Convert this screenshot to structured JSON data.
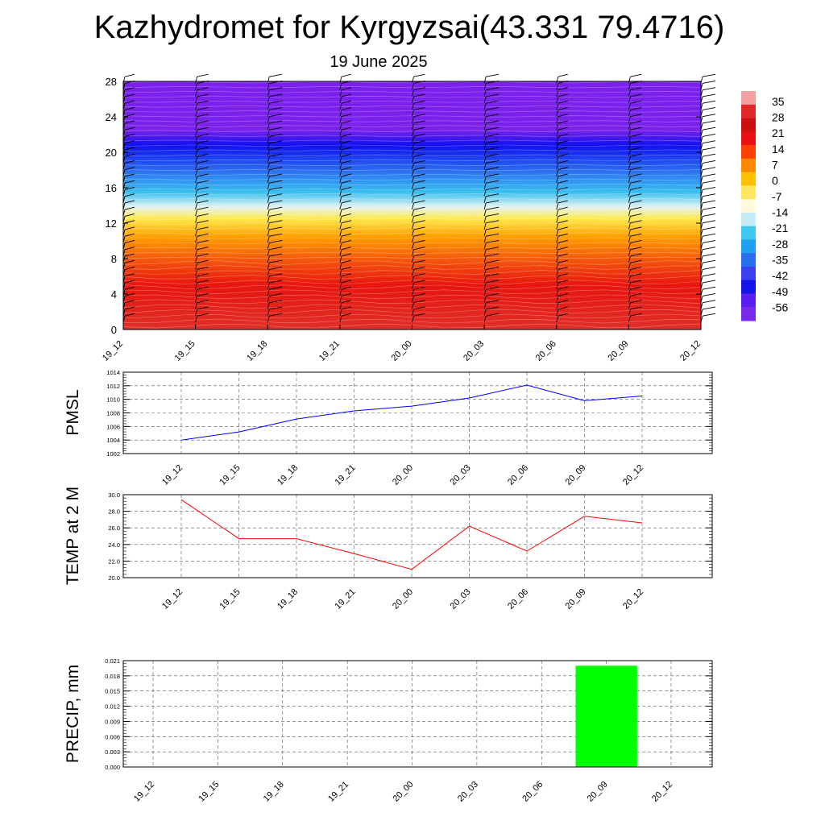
{
  "title": "Kazhydromet for Kyrgyzsai(43.331 79.4716)",
  "subtitle": "19 June 2025",
  "chart_data": [
    {
      "type": "heatmap",
      "x_categories": [
        "19_12",
        "19_15",
        "19_18",
        "19_21",
        "20_00",
        "20_03",
        "20_06",
        "20_09",
        "20_12"
      ],
      "y_ticks": [
        0,
        4,
        8,
        12,
        16,
        20,
        24,
        28
      ],
      "ylim": [
        0,
        28
      ],
      "colorbar_labels": [
        "35",
        "28",
        "21",
        "14",
        "7",
        "0",
        "-7",
        "-14",
        "-21",
        "-28",
        "-35",
        "-42",
        "-49",
        "-56"
      ],
      "color_stops": [
        {
          "level": 0,
          "color": "#e03028"
        },
        {
          "level": 5,
          "color": "#e8150f"
        },
        {
          "level": 8,
          "color": "#f55a0c"
        },
        {
          "level": 10.5,
          "color": "#ffa000"
        },
        {
          "level": 12.5,
          "color": "#ffe84a"
        },
        {
          "level": 13.8,
          "color": "#e6f4f0"
        },
        {
          "level": 15.5,
          "color": "#38c0f0"
        },
        {
          "level": 18,
          "color": "#2a6cf0"
        },
        {
          "level": 20.8,
          "color": "#1010f0"
        },
        {
          "level": 22.5,
          "color": "#7a22ea"
        },
        {
          "level": 28,
          "color": "#7b20ee"
        }
      ],
      "colorbar_colors": [
        "#f5a0a0",
        "#e02a2a",
        "#cc1010",
        "#e81010",
        "#ff4000",
        "#ff8a00",
        "#ffc000",
        "#ffe860",
        "#fffadc",
        "#c8ecf5",
        "#40c8f0",
        "#1fa0f0",
        "#2870f0",
        "#3a40f0",
        "#1414e8",
        "#5a1ef0",
        "#7a2ae8"
      ]
    },
    {
      "type": "line",
      "ylabel": "PMSL",
      "categories": [
        "19_12",
        "19_15",
        "19_18",
        "19_21",
        "20_00",
        "20_03",
        "20_06",
        "20_09",
        "20_12"
      ],
      "values": [
        1004,
        1005.2,
        1007.1,
        1008.3,
        1009,
        1010.2,
        1012.1,
        1009.8,
        1010.5
      ],
      "yticks": [
        "1002",
        "1004",
        "1006",
        "1008",
        "1010",
        "1012",
        "1014"
      ],
      "ylim": [
        1002,
        1014
      ],
      "color": "#0000ff"
    },
    {
      "type": "line",
      "ylabel": "TEMP at 2 M",
      "categories": [
        "19_12",
        "19_15",
        "19_18",
        "19_21",
        "20_00",
        "20_03",
        "20_06",
        "20_09",
        "20_12"
      ],
      "values": [
        29.4,
        24.7,
        24.7,
        22.9,
        21,
        26.2,
        23.2,
        27.4,
        26.6
      ],
      "yticks": [
        "20.0",
        "22.0",
        "24.0",
        "26.0",
        "28.0",
        "30.0"
      ],
      "ylim": [
        20,
        30
      ],
      "color": "#ff0000"
    },
    {
      "type": "bar",
      "ylabel": "PRECIP, mm",
      "categories": [
        "19_12",
        "19_15",
        "19_18",
        "19_21",
        "20_00",
        "20_03",
        "20_06",
        "20_09",
        "20_12"
      ],
      "values": [
        0,
        0,
        0,
        0,
        0,
        0,
        0,
        0.02,
        0
      ],
      "yticks": [
        "0.000",
        "0.003",
        "0.006",
        "0.009",
        "0.012",
        "0.015",
        "0.018",
        "0.021"
      ],
      "ylim": [
        0,
        0.021
      ],
      "color": "#00ff00"
    }
  ]
}
